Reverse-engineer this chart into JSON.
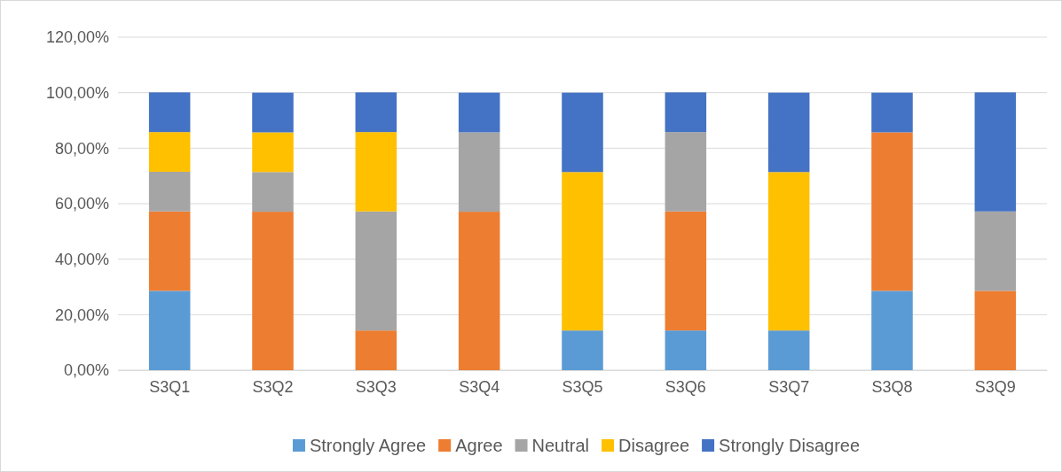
{
  "chart_data": {
    "type": "bar",
    "stacked": true,
    "categories": [
      "S3Q1",
      "S3Q2",
      "S3Q3",
      "S3Q4",
      "S3Q5",
      "S3Q6",
      "S3Q7",
      "S3Q8",
      "S3Q9"
    ],
    "series": [
      {
        "name": "Strongly Agree",
        "color": "#5b9bd5",
        "values": [
          28.6,
          0,
          0,
          0,
          14.3,
          14.3,
          14.3,
          28.6,
          0
        ]
      },
      {
        "name": "Agree",
        "color": "#ed7d31",
        "values": [
          28.6,
          57.1,
          14.3,
          57.1,
          0,
          42.9,
          0,
          57.1,
          28.6
        ]
      },
      {
        "name": "Neutral",
        "color": "#a5a5a5",
        "values": [
          14.3,
          14.3,
          42.9,
          28.6,
          0,
          28.6,
          0,
          0,
          28.6
        ]
      },
      {
        "name": "Disagree",
        "color": "#ffc000",
        "values": [
          14.3,
          14.3,
          28.6,
          0,
          57.1,
          0,
          57.1,
          0,
          0
        ]
      },
      {
        "name": "Strongly Disagree",
        "color": "#4472c4",
        "values": [
          14.3,
          14.3,
          14.3,
          14.3,
          28.6,
          14.3,
          28.6,
          14.3,
          42.9
        ]
      }
    ],
    "ylim": [
      0,
      120
    ],
    "yticks": [
      {
        "value": 0,
        "label": "0,00%"
      },
      {
        "value": 20,
        "label": "20,00%"
      },
      {
        "value": 40,
        "label": "40,00%"
      },
      {
        "value": 60,
        "label": "60,00%"
      },
      {
        "value": 80,
        "label": "80,00%"
      },
      {
        "value": 100,
        "label": "100,00%"
      },
      {
        "value": 120,
        "label": "120,00%"
      }
    ],
    "grid": "y",
    "legend": "bottom"
  }
}
